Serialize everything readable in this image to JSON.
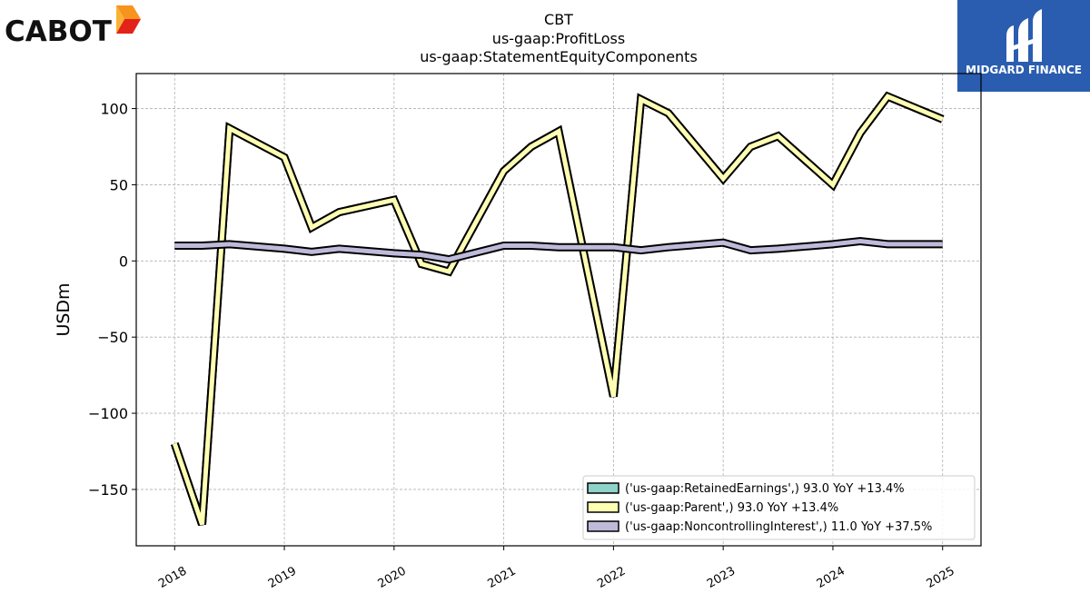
{
  "logos": {
    "left": {
      "text": "CABOT",
      "colors": [
        "#f7941d",
        "#e2231a"
      ]
    },
    "right": {
      "text": "MIDGARD FINANCE",
      "background": "#2a5db0"
    }
  },
  "chart_data": {
    "type": "line",
    "title_lines": [
      "CBT",
      "us-gaap:ProfitLoss",
      "us-gaap:StatementEquityComponents"
    ],
    "xlabel": "",
    "ylabel": "USDm",
    "xlim": [
      2017.65,
      2025.35
    ],
    "ylim": [
      -187,
      123
    ],
    "x_ticks": [
      2018,
      2019,
      2020,
      2021,
      2022,
      2023,
      2024,
      2025
    ],
    "y_ticks": [
      100,
      50,
      0,
      -50,
      -100,
      -150
    ],
    "y_tick_labels": [
      "100",
      "50",
      "0",
      "−50",
      "−100",
      "−150"
    ],
    "grid": true,
    "legend_position": "lower-right",
    "series": [
      {
        "name": "('us-gaap:RetainedEarnings',)",
        "legend_label": "('us-gaap:RetainedEarnings',) 93.0 YoY +13.4%",
        "color": "#8dd3c7",
        "x": [
          2018.0,
          2018.25,
          2018.5,
          2019.0,
          2019.25,
          2019.5,
          2020.0,
          2020.25,
          2020.5,
          2021.0,
          2021.25,
          2021.5,
          2022.0,
          2022.25,
          2022.5,
          2023.0,
          2023.25,
          2023.5,
          2024.0,
          2024.25,
          2024.5,
          2025.0
        ],
        "values": [
          -120,
          -173,
          87,
          68,
          22,
          32,
          40,
          -2,
          -7,
          59,
          75,
          85,
          -89,
          106,
          97,
          54,
          75,
          82,
          50,
          84,
          108,
          93
        ]
      },
      {
        "name": "('us-gaap:Parent',)",
        "legend_label": "('us-gaap:Parent',) 93.0 YoY +13.4%",
        "color": "#ffffb3",
        "x": [
          2018.0,
          2018.25,
          2018.5,
          2019.0,
          2019.25,
          2019.5,
          2020.0,
          2020.25,
          2020.5,
          2021.0,
          2021.25,
          2021.5,
          2022.0,
          2022.25,
          2022.5,
          2023.0,
          2023.25,
          2023.5,
          2024.0,
          2024.25,
          2024.5,
          2025.0
        ],
        "values": [
          -120,
          -173,
          87,
          68,
          22,
          32,
          40,
          -2,
          -7,
          59,
          75,
          85,
          -89,
          106,
          97,
          54,
          75,
          82,
          50,
          84,
          108,
          93
        ]
      },
      {
        "name": "('us-gaap:NoncontrollingInterest',)",
        "legend_label": "('us-gaap:NoncontrollingInterest',) 11.0 YoY +37.5%",
        "color": "#bebada",
        "x": [
          2018.0,
          2018.25,
          2018.5,
          2019.0,
          2019.25,
          2019.5,
          2020.0,
          2020.25,
          2020.5,
          2021.0,
          2021.25,
          2021.5,
          2022.0,
          2022.25,
          2022.5,
          2023.0,
          2023.25,
          2023.5,
          2024.0,
          2024.25,
          2024.5,
          2025.0
        ],
        "values": [
          10,
          10,
          11,
          8,
          6,
          8,
          5,
          4,
          1,
          10,
          10,
          9,
          9,
          7,
          9,
          12,
          7,
          8,
          11,
          13,
          11,
          11
        ]
      }
    ]
  }
}
